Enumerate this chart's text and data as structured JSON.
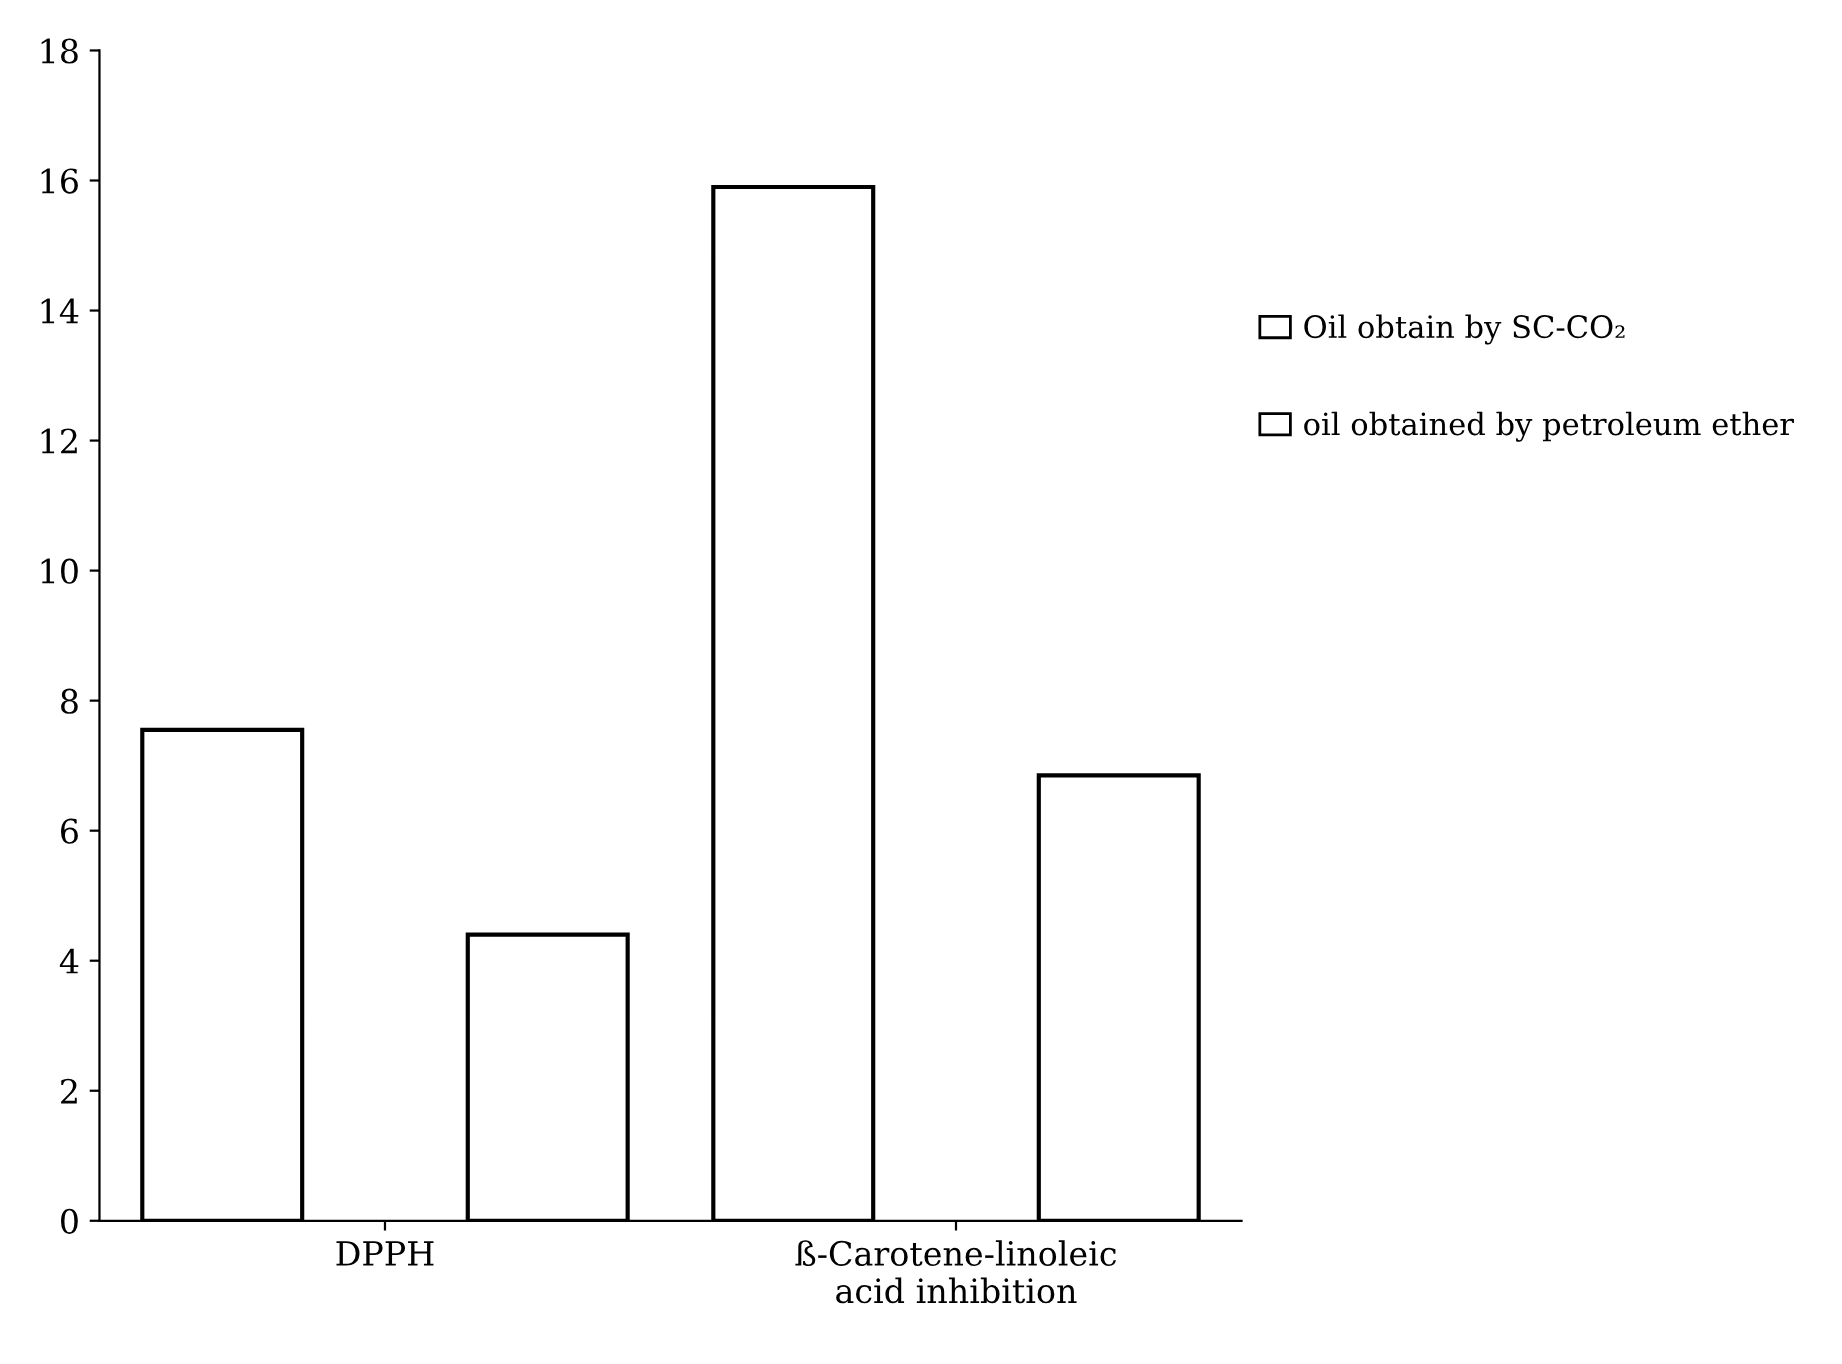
{
  "chart_data": {
    "type": "bar",
    "categories": [
      "DPPH",
      "ß-Carotene-linoleic\nacid inhibition"
    ],
    "series": [
      {
        "name": "Oil obtain by SC-CO₂",
        "color": "#ffffff",
        "values": [
          7.55,
          15.9
        ]
      },
      {
        "name": "oil obtained by petroleum ether",
        "color": "#ffffff",
        "values": [
          4.4,
          6.85
        ]
      }
    ],
    "ylim": [
      0,
      18
    ],
    "yticks": [
      0,
      2,
      4,
      6,
      8,
      10,
      12,
      14,
      16,
      18
    ],
    "grid": false,
    "legend": "right"
  }
}
